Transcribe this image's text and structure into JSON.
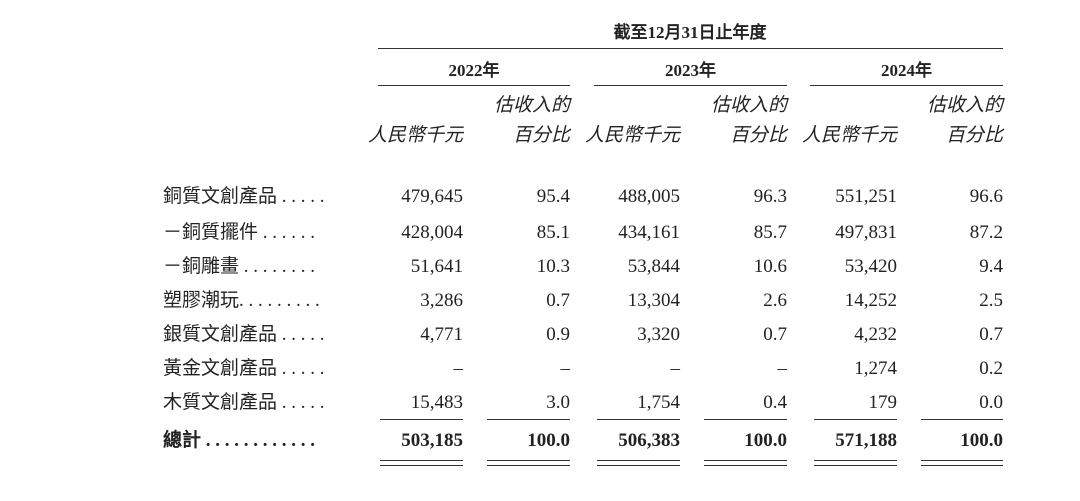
{
  "table": {
    "period": "截至12月31日止年度",
    "years": [
      "2022年",
      "2023年",
      "2024年"
    ],
    "subheaders": [
      [
        "人民幣千元"
      ],
      [
        "估收入的",
        "百分比"
      ],
      [
        "人民幣千元"
      ],
      [
        "估收入的",
        "百分比"
      ],
      [
        "人民幣千元"
      ],
      [
        "估收入的",
        "百分比"
      ]
    ],
    "rows": [
      {
        "label": "銅質文創產品 . . . . .",
        "cells": [
          "479,645",
          "95.4",
          "488,005",
          "96.3",
          "551,251",
          "96.6"
        ]
      },
      {
        "label": "－銅質擺件 . . . . . .",
        "cells": [
          "428,004",
          "85.1",
          "434,161",
          "85.7",
          "497,831",
          "87.2"
        ]
      },
      {
        "label": "－銅雕畫 . . . . . . . .",
        "cells": [
          "51,641",
          "10.3",
          "53,844",
          "10.6",
          "53,420",
          "9.4"
        ]
      },
      {
        "label": "塑膠潮玩. . . . . . . . .",
        "cells": [
          "3,286",
          "0.7",
          "13,304",
          "2.6",
          "14,252",
          "2.5"
        ]
      },
      {
        "label": "銀質文創產品 . . . . .",
        "cells": [
          "4,771",
          "0.9",
          "3,320",
          "0.7",
          "4,232",
          "0.7"
        ]
      },
      {
        "label": "黃金文創產品 . . . . .",
        "cells": [
          "–",
          "–",
          "–",
          "–",
          "1,274",
          "0.2"
        ]
      },
      {
        "label": "木質文創產品 . . . . .",
        "cells": [
          "15,483",
          "3.0",
          "1,754",
          "0.4",
          "179",
          "0.0"
        ]
      }
    ],
    "total": {
      "label": "總計 . . . . . . . . . . . .",
      "cells": [
        "503,185",
        "100.0",
        "506,383",
        "100.0",
        "571,188",
        "100.0"
      ]
    }
  }
}
